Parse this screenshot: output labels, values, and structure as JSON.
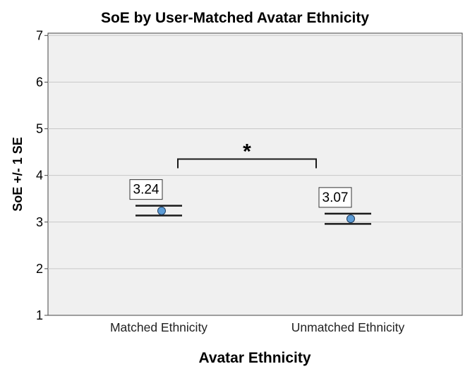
{
  "chart_data": {
    "type": "scatter",
    "title": "SoE by User-Matched Avatar Ethnicity",
    "xlabel": "Avatar Ethnicity",
    "ylabel": "SoE +/- 1 SE",
    "ylim": [
      1,
      7
    ],
    "yticks": [
      "1",
      "2",
      "3",
      "4",
      "5",
      "6",
      "7"
    ],
    "grid": true,
    "categories": [
      "Matched Ethnicity",
      "Unmatched Ethnicity"
    ],
    "points": [
      {
        "category": "Matched Ethnicity",
        "mean": 3.24,
        "se_lower": 3.14,
        "se_upper": 3.35,
        "label": "3.24"
      },
      {
        "category": "Unmatched Ethnicity",
        "mean": 3.07,
        "se_lower": 2.96,
        "se_upper": 3.18,
        "label": "3.07"
      }
    ],
    "significance": {
      "between": [
        "Matched Ethnicity",
        "Unmatched Ethnicity"
      ],
      "marker": "*",
      "y": 4.35
    },
    "colors": {
      "point_fill": "#5b9bd5",
      "point_stroke": "#1f3b5c",
      "plot_bg": "#f0f0f0",
      "grid": "#c8c8c8"
    }
  }
}
